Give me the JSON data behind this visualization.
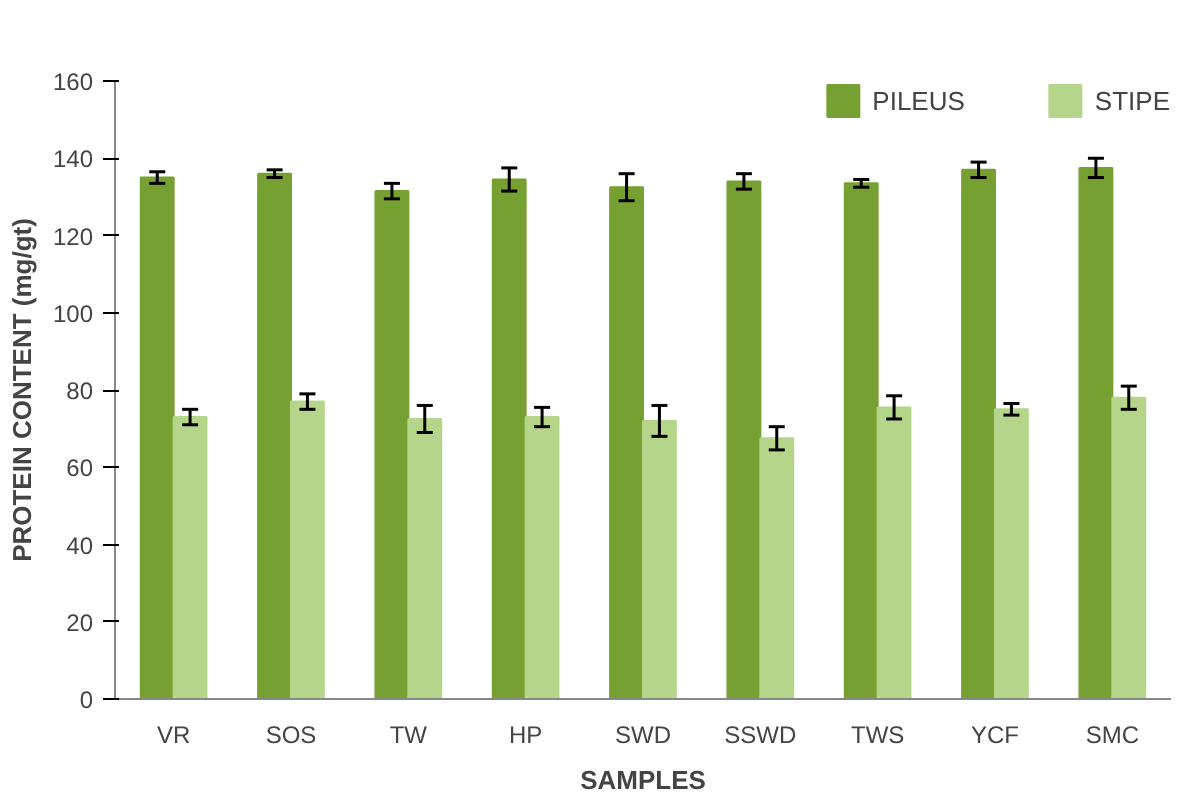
{
  "chart_data": {
    "type": "bar",
    "xlabel": "SAMPLES",
    "ylabel": "PROTEIN CONTENT (mg/gt)",
    "categories": [
      "VR",
      "SOS",
      "TW",
      "HP",
      "SWD",
      "SSWD",
      "TWS",
      "YCF",
      "SMC"
    ],
    "series": [
      {
        "name": "PILEUS",
        "color": "#77a032",
        "values": [
          135,
          136,
          131.5,
          134.5,
          132.5,
          134,
          133.5,
          137,
          137.5
        ],
        "errors": [
          1.5,
          1,
          2,
          3,
          3.5,
          2,
          1,
          2,
          2.5
        ]
      },
      {
        "name": "STIPE",
        "color": "#b5d68a",
        "values": [
          73,
          77,
          72.5,
          73,
          72,
          67.5,
          75.5,
          75,
          78
        ],
        "errors": [
          2,
          2,
          3.5,
          2.5,
          4,
          3,
          3,
          1.5,
          3
        ]
      }
    ],
    "ylim": [
      0,
      160
    ],
    "yticks": [
      0,
      20,
      40,
      60,
      80,
      100,
      120,
      140,
      160
    ],
    "grid": false,
    "legend": "top right"
  }
}
